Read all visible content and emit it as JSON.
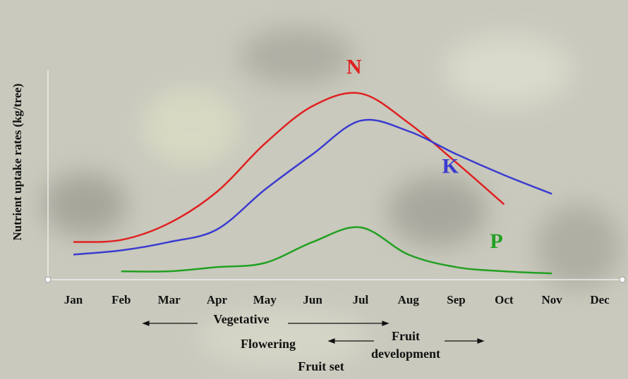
{
  "chart_data": {
    "type": "line",
    "y_label": "Nutrient uptake rates (kg/tree)",
    "categories": [
      "Jan",
      "Feb",
      "Mar",
      "Apr",
      "May",
      "Jun",
      "Jul",
      "Aug",
      "Sep",
      "Oct",
      "Nov",
      "Dec"
    ],
    "ylim": [
      0,
      100
    ],
    "series": [
      {
        "name": "N",
        "color": "#e02020",
        "values": [
          18,
          19,
          27,
          42,
          65,
          83,
          89,
          75,
          56,
          36,
          null,
          null
        ]
      },
      {
        "name": "K",
        "color": "#3b3bd0",
        "values": [
          12,
          14,
          18,
          24,
          43,
          60,
          76,
          71,
          60,
          50,
          41,
          null
        ]
      },
      {
        "name": "P",
        "color": "#22a022",
        "values": [
          null,
          4,
          4,
          6,
          8,
          18,
          25,
          12,
          6,
          4,
          3,
          null
        ]
      }
    ],
    "annotations": [
      "Vegetative",
      "Flowering",
      "Fruit set",
      "Fruit",
      "development"
    ]
  }
}
